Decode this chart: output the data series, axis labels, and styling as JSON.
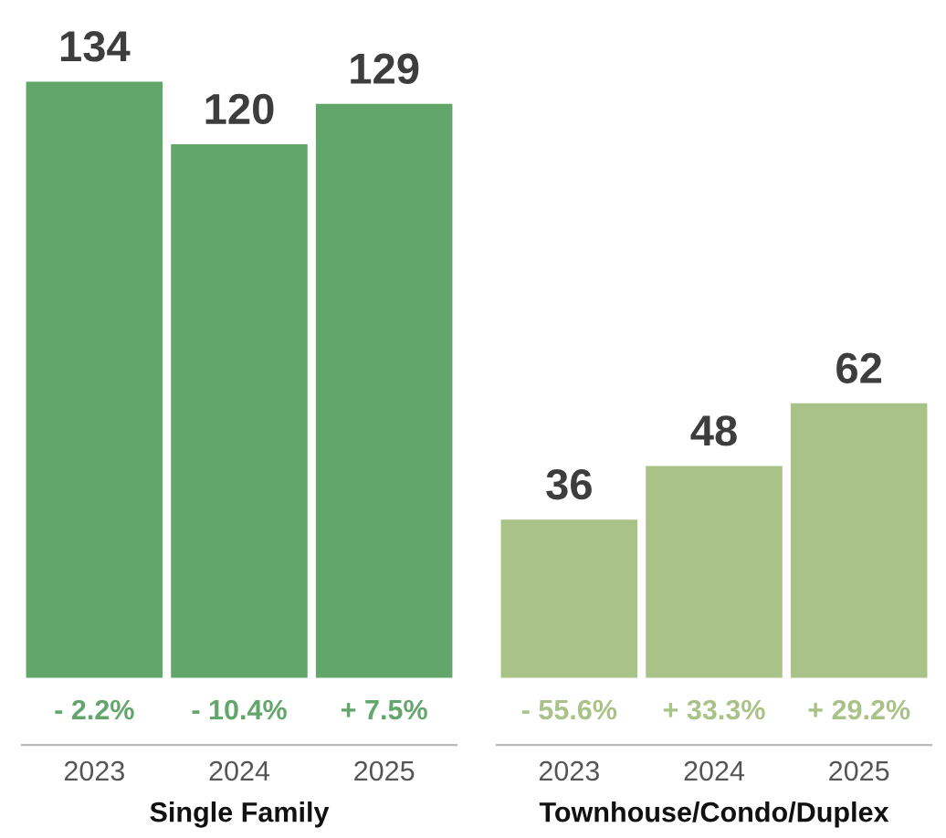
{
  "chart_data": [
    {
      "type": "bar",
      "xlabel": "Single Family",
      "categories": [
        "2023",
        "2024",
        "2025"
      ],
      "data_labels": true,
      "grid": false,
      "legend": false,
      "series": [
        {
          "color": "#62a66b",
          "values": [
            134,
            120,
            129
          ]
        }
      ],
      "annotations": [
        "- 2.2%",
        "- 10.4%",
        "+ 7.5%"
      ]
    },
    {
      "type": "bar",
      "xlabel": "Townhouse/Condo/Duplex",
      "categories": [
        "2023",
        "2024",
        "2025"
      ],
      "data_labels": true,
      "grid": false,
      "legend": false,
      "series": [
        {
          "color": "#a9c287",
          "values": [
            36,
            48,
            62
          ]
        }
      ],
      "annotations": [
        "- 55.6%",
        "+ 33.3%",
        "+ 29.2%"
      ]
    }
  ]
}
